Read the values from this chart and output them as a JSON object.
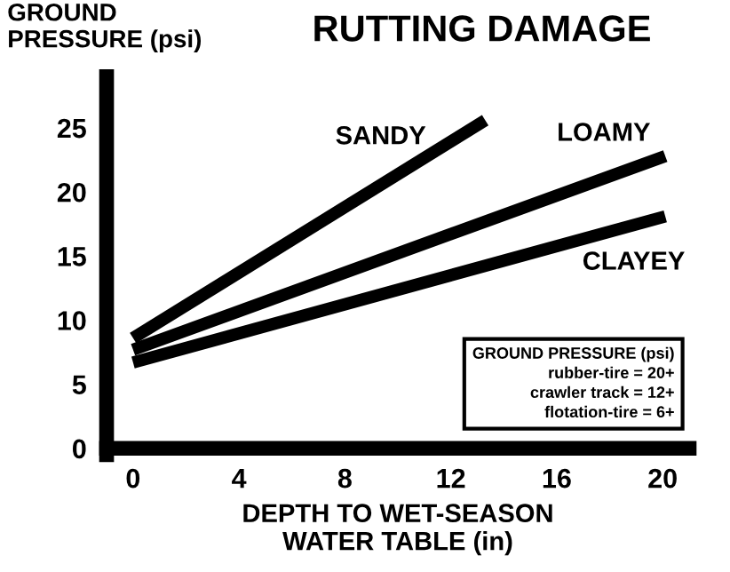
{
  "chart_data": {
    "type": "line",
    "title": "RUTTING DAMAGE",
    "ylabel": "GROUND\nPRESSURE (psi)",
    "xlabel": "DEPTH TO WET-SEASON\nWATER TABLE (in)",
    "xlim": [
      -1,
      21
    ],
    "ylim": [
      -0.5,
      29
    ],
    "xticks": [
      0,
      4,
      8,
      12,
      16,
      20
    ],
    "yticks": [
      0,
      5,
      10,
      15,
      20,
      25
    ],
    "grid": false,
    "legend": false,
    "marker": "none",
    "line_style": "solid",
    "series": [
      {
        "name": "SANDY",
        "color": "#000000",
        "x": [
          0,
          13.3
        ],
        "values": [
          8.6,
          25.6
        ]
      },
      {
        "name": "LOAMY",
        "color": "#000000",
        "x": [
          0,
          20.1
        ],
        "values": [
          7.7,
          22.8
        ]
      },
      {
        "name": "CLAYEY",
        "color": "#000000",
        "x": [
          0,
          20.1
        ],
        "values": [
          6.7,
          18.1
        ]
      }
    ],
    "annotations": [
      "GROUND PRESSURE (psi)\nrubber-tire = 20+\ncrawler track = 12+\nflotation-tire = 6+"
    ]
  }
}
